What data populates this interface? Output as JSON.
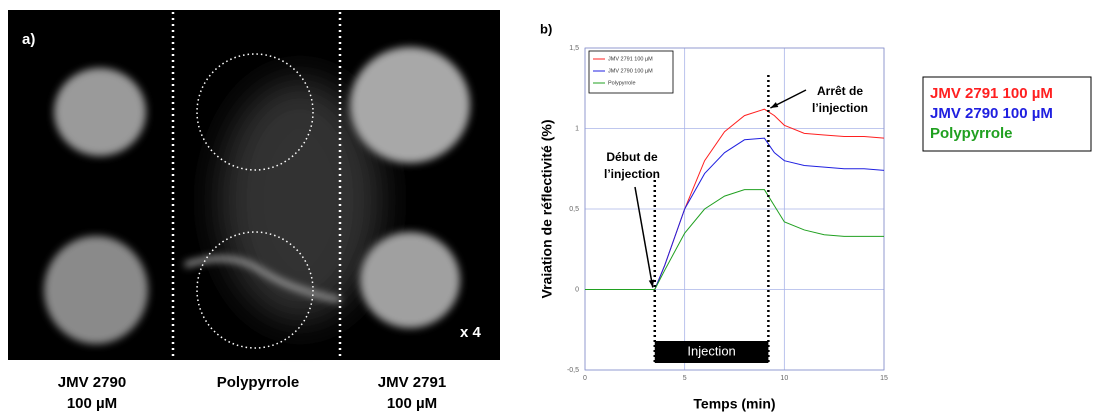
{
  "image": {
    "panel_label": "a)",
    "magnification": "x 4",
    "labels": [
      [
        "JMV 2790",
        "100 µM"
      ],
      [
        "Polypyrrole"
      ],
      [
        "JMV 2791",
        "100 µM"
      ]
    ]
  },
  "chart_data": {
    "type": "line",
    "panel_label": "b)",
    "x_label": "Temps (min)",
    "y_label": "Vraiation de réflectivité (%)",
    "x": [
      0,
      1,
      2,
      3,
      3.5,
      4,
      5,
      6,
      7,
      8,
      9,
      9.5,
      10,
      11,
      12,
      13,
      14,
      15
    ],
    "series": [
      {
        "name": "JMV 2791 100 µM",
        "color": "#ff2020",
        "values": [
          0,
          0,
          0,
          0,
          0,
          0.15,
          0.5,
          0.8,
          0.98,
          1.08,
          1.12,
          1.08,
          1.02,
          0.97,
          0.96,
          0.95,
          0.95,
          0.94
        ]
      },
      {
        "name": "JMV 2790 100 µM",
        "color": "#2020e0",
        "values": [
          0,
          0,
          0,
          0,
          0,
          0.15,
          0.5,
          0.72,
          0.85,
          0.93,
          0.94,
          0.85,
          0.8,
          0.77,
          0.76,
          0.75,
          0.75,
          0.74
        ]
      },
      {
        "name": "Polypyrrole",
        "color": "#20a020",
        "values": [
          0,
          0,
          0,
          0,
          0,
          0.12,
          0.35,
          0.5,
          0.58,
          0.62,
          0.62,
          0.52,
          0.42,
          0.37,
          0.34,
          0.33,
          0.33,
          0.33
        ]
      }
    ],
    "xlim": [
      0,
      15
    ],
    "xticks": [
      0,
      5,
      10,
      15
    ],
    "ylim": [
      -0.5,
      1.5
    ],
    "yticks": [
      {
        "value": -0.5,
        "label": "-0,5"
      },
      0,
      {
        "value": 0.5,
        "label": "0,5"
      },
      1,
      {
        "value": 1.5,
        "label": "1,5"
      }
    ],
    "grid": true,
    "injection": {
      "label": "Injection",
      "start": 3.5,
      "end": 9.2
    },
    "annotations": [
      {
        "lines": [
          "Début de",
          "l’injection"
        ],
        "x": 3.5
      },
      {
        "lines": [
          "Arrêt de",
          "l’injection"
        ],
        "x": 9.2
      }
    ]
  }
}
